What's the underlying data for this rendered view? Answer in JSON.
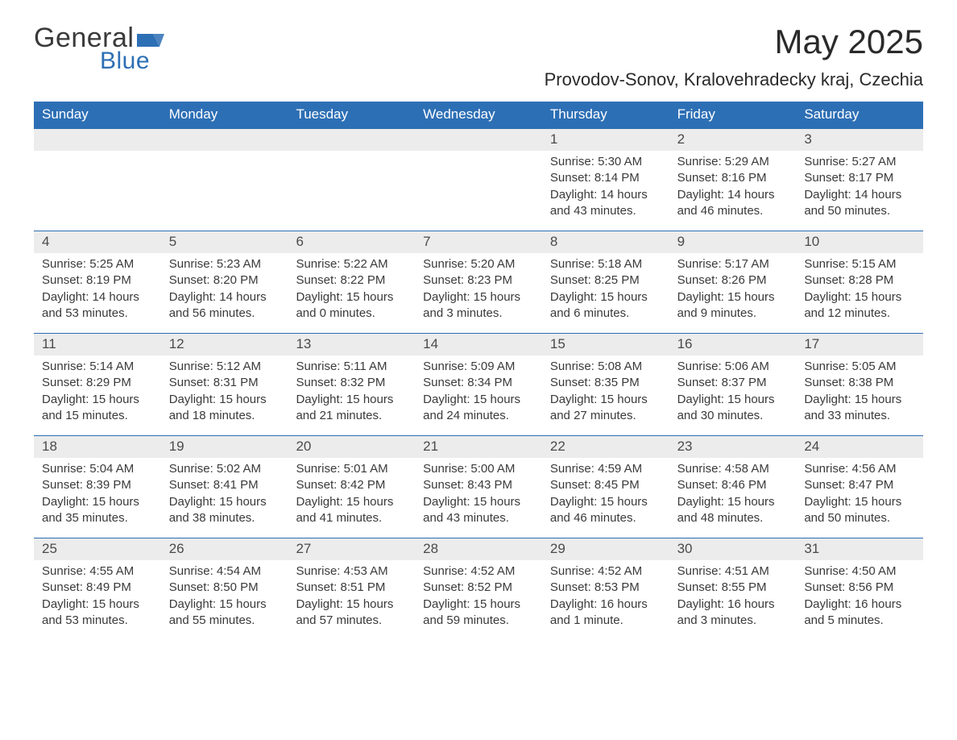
{
  "brand": {
    "word1": "General",
    "word2": "Blue",
    "flag_color": "#2d6fb5"
  },
  "header": {
    "title": "May 2025",
    "location": "Provodov-Sonov, Kralovehradecky kraj, Czechia"
  },
  "colors": {
    "header_bg": "#2d6fb5",
    "header_fg": "#ffffff",
    "daynum_bg": "#ececec",
    "text": "#3a3a3a",
    "rule": "#2d6fb5",
    "page_bg": "#ffffff"
  },
  "dow": [
    "Sunday",
    "Monday",
    "Tuesday",
    "Wednesday",
    "Thursday",
    "Friday",
    "Saturday"
  ],
  "weeks": [
    [
      {
        "n": "",
        "sunrise": "",
        "sunset": "",
        "daylight": ""
      },
      {
        "n": "",
        "sunrise": "",
        "sunset": "",
        "daylight": ""
      },
      {
        "n": "",
        "sunrise": "",
        "sunset": "",
        "daylight": ""
      },
      {
        "n": "",
        "sunrise": "",
        "sunset": "",
        "daylight": ""
      },
      {
        "n": "1",
        "sunrise": "Sunrise: 5:30 AM",
        "sunset": "Sunset: 8:14 PM",
        "daylight": "Daylight: 14 hours and 43 minutes."
      },
      {
        "n": "2",
        "sunrise": "Sunrise: 5:29 AM",
        "sunset": "Sunset: 8:16 PM",
        "daylight": "Daylight: 14 hours and 46 minutes."
      },
      {
        "n": "3",
        "sunrise": "Sunrise: 5:27 AM",
        "sunset": "Sunset: 8:17 PM",
        "daylight": "Daylight: 14 hours and 50 minutes."
      }
    ],
    [
      {
        "n": "4",
        "sunrise": "Sunrise: 5:25 AM",
        "sunset": "Sunset: 8:19 PM",
        "daylight": "Daylight: 14 hours and 53 minutes."
      },
      {
        "n": "5",
        "sunrise": "Sunrise: 5:23 AM",
        "sunset": "Sunset: 8:20 PM",
        "daylight": "Daylight: 14 hours and 56 minutes."
      },
      {
        "n": "6",
        "sunrise": "Sunrise: 5:22 AM",
        "sunset": "Sunset: 8:22 PM",
        "daylight": "Daylight: 15 hours and 0 minutes."
      },
      {
        "n": "7",
        "sunrise": "Sunrise: 5:20 AM",
        "sunset": "Sunset: 8:23 PM",
        "daylight": "Daylight: 15 hours and 3 minutes."
      },
      {
        "n": "8",
        "sunrise": "Sunrise: 5:18 AM",
        "sunset": "Sunset: 8:25 PM",
        "daylight": "Daylight: 15 hours and 6 minutes."
      },
      {
        "n": "9",
        "sunrise": "Sunrise: 5:17 AM",
        "sunset": "Sunset: 8:26 PM",
        "daylight": "Daylight: 15 hours and 9 minutes."
      },
      {
        "n": "10",
        "sunrise": "Sunrise: 5:15 AM",
        "sunset": "Sunset: 8:28 PM",
        "daylight": "Daylight: 15 hours and 12 minutes."
      }
    ],
    [
      {
        "n": "11",
        "sunrise": "Sunrise: 5:14 AM",
        "sunset": "Sunset: 8:29 PM",
        "daylight": "Daylight: 15 hours and 15 minutes."
      },
      {
        "n": "12",
        "sunrise": "Sunrise: 5:12 AM",
        "sunset": "Sunset: 8:31 PM",
        "daylight": "Daylight: 15 hours and 18 minutes."
      },
      {
        "n": "13",
        "sunrise": "Sunrise: 5:11 AM",
        "sunset": "Sunset: 8:32 PM",
        "daylight": "Daylight: 15 hours and 21 minutes."
      },
      {
        "n": "14",
        "sunrise": "Sunrise: 5:09 AM",
        "sunset": "Sunset: 8:34 PM",
        "daylight": "Daylight: 15 hours and 24 minutes."
      },
      {
        "n": "15",
        "sunrise": "Sunrise: 5:08 AM",
        "sunset": "Sunset: 8:35 PM",
        "daylight": "Daylight: 15 hours and 27 minutes."
      },
      {
        "n": "16",
        "sunrise": "Sunrise: 5:06 AM",
        "sunset": "Sunset: 8:37 PM",
        "daylight": "Daylight: 15 hours and 30 minutes."
      },
      {
        "n": "17",
        "sunrise": "Sunrise: 5:05 AM",
        "sunset": "Sunset: 8:38 PM",
        "daylight": "Daylight: 15 hours and 33 minutes."
      }
    ],
    [
      {
        "n": "18",
        "sunrise": "Sunrise: 5:04 AM",
        "sunset": "Sunset: 8:39 PM",
        "daylight": "Daylight: 15 hours and 35 minutes."
      },
      {
        "n": "19",
        "sunrise": "Sunrise: 5:02 AM",
        "sunset": "Sunset: 8:41 PM",
        "daylight": "Daylight: 15 hours and 38 minutes."
      },
      {
        "n": "20",
        "sunrise": "Sunrise: 5:01 AM",
        "sunset": "Sunset: 8:42 PM",
        "daylight": "Daylight: 15 hours and 41 minutes."
      },
      {
        "n": "21",
        "sunrise": "Sunrise: 5:00 AM",
        "sunset": "Sunset: 8:43 PM",
        "daylight": "Daylight: 15 hours and 43 minutes."
      },
      {
        "n": "22",
        "sunrise": "Sunrise: 4:59 AM",
        "sunset": "Sunset: 8:45 PM",
        "daylight": "Daylight: 15 hours and 46 minutes."
      },
      {
        "n": "23",
        "sunrise": "Sunrise: 4:58 AM",
        "sunset": "Sunset: 8:46 PM",
        "daylight": "Daylight: 15 hours and 48 minutes."
      },
      {
        "n": "24",
        "sunrise": "Sunrise: 4:56 AM",
        "sunset": "Sunset: 8:47 PM",
        "daylight": "Daylight: 15 hours and 50 minutes."
      }
    ],
    [
      {
        "n": "25",
        "sunrise": "Sunrise: 4:55 AM",
        "sunset": "Sunset: 8:49 PM",
        "daylight": "Daylight: 15 hours and 53 minutes."
      },
      {
        "n": "26",
        "sunrise": "Sunrise: 4:54 AM",
        "sunset": "Sunset: 8:50 PM",
        "daylight": "Daylight: 15 hours and 55 minutes."
      },
      {
        "n": "27",
        "sunrise": "Sunrise: 4:53 AM",
        "sunset": "Sunset: 8:51 PM",
        "daylight": "Daylight: 15 hours and 57 minutes."
      },
      {
        "n": "28",
        "sunrise": "Sunrise: 4:52 AM",
        "sunset": "Sunset: 8:52 PM",
        "daylight": "Daylight: 15 hours and 59 minutes."
      },
      {
        "n": "29",
        "sunrise": "Sunrise: 4:52 AM",
        "sunset": "Sunset: 8:53 PM",
        "daylight": "Daylight: 16 hours and 1 minute."
      },
      {
        "n": "30",
        "sunrise": "Sunrise: 4:51 AM",
        "sunset": "Sunset: 8:55 PM",
        "daylight": "Daylight: 16 hours and 3 minutes."
      },
      {
        "n": "31",
        "sunrise": "Sunrise: 4:50 AM",
        "sunset": "Sunset: 8:56 PM",
        "daylight": "Daylight: 16 hours and 5 minutes."
      }
    ]
  ]
}
